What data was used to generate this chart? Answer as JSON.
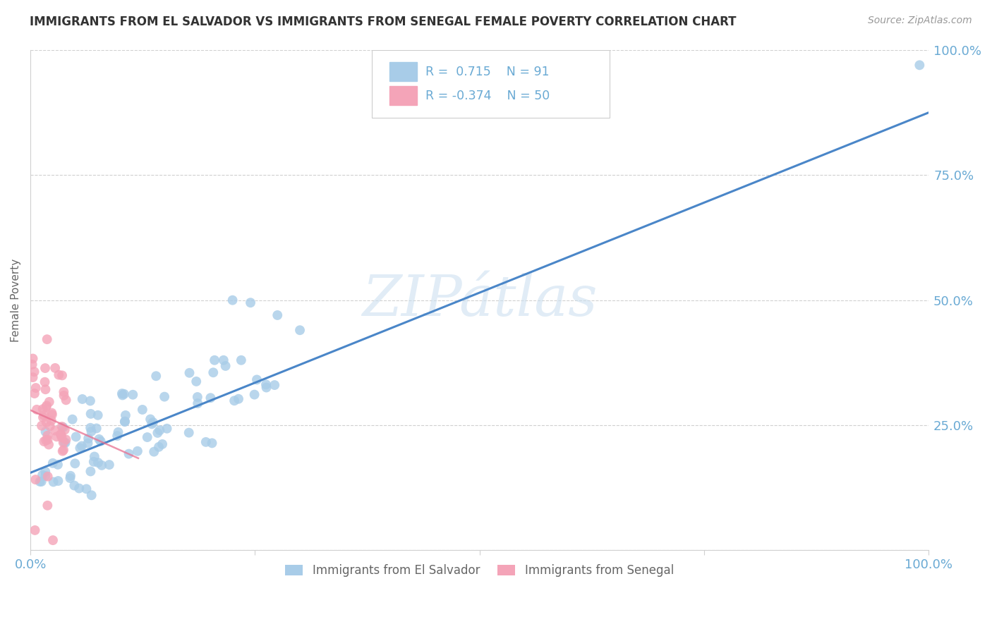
{
  "title": "IMMIGRANTS FROM EL SALVADOR VS IMMIGRANTS FROM SENEGAL FEMALE POVERTY CORRELATION CHART",
  "source": "Source: ZipAtlas.com",
  "ylabel": "Female Poverty",
  "watermark": "ZIPátlas",
  "R1": 0.715,
  "N1": 91,
  "R2": -0.374,
  "N2": 50,
  "el_salvador_color": "#a8cce8",
  "senegal_color": "#f4a4b8",
  "trendline1_color": "#4a86c8",
  "trendline2_color": "#e87090",
  "background_color": "#ffffff",
  "tick_color": "#6aaad4",
  "grid_color": "#d0d0d0",
  "title_color": "#333333",
  "source_color": "#999999",
  "watermark_color": "#cde0f0",
  "ylabel_color": "#666666",
  "legend_border_color": "#cccccc",
  "bottom_legend_color": "#666666",
  "trendline1_intercept": 0.155,
  "trendline1_slope": 0.72,
  "trendline2_intercept": 0.28,
  "trendline2_slope": -0.8,
  "seed": 99
}
